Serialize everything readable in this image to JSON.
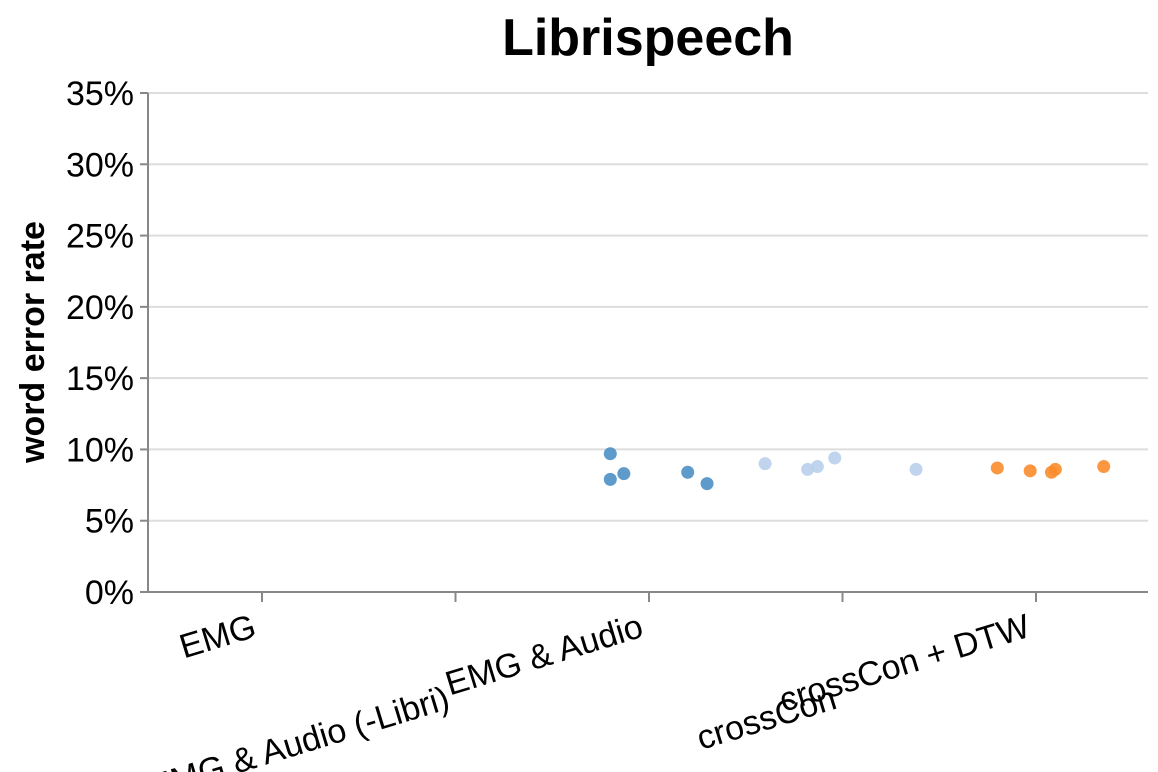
{
  "chart_data": {
    "type": "scatter",
    "title": "Librispeech",
    "ylabel": "word error rate",
    "xlabel": "",
    "categories": [
      "EMG",
      "EMG & Audio (-Libri)",
      "EMG & Audio",
      "crossCon",
      "crossCon + DTW"
    ],
    "ylim": [
      0,
      0.35
    ],
    "yticks": [
      0,
      0.05,
      0.1,
      0.15,
      0.2,
      0.25,
      0.3,
      0.35
    ],
    "ytick_labels": [
      "0%",
      "5%",
      "10%",
      "15%",
      "20%",
      "25%",
      "30%",
      "35%"
    ],
    "grid": true,
    "series": [
      {
        "category": "EMG & Audio",
        "color": "#4c8fc4",
        "points": [
          {
            "jitter": -0.2,
            "y": 0.097
          },
          {
            "jitter": -0.2,
            "y": 0.079
          },
          {
            "jitter": -0.13,
            "y": 0.083
          },
          {
            "jitter": 0.2,
            "y": 0.084
          },
          {
            "jitter": 0.3,
            "y": 0.076
          }
        ]
      },
      {
        "category": "crossCon",
        "color": "#b9cfec",
        "points": [
          {
            "jitter": -0.4,
            "y": 0.09
          },
          {
            "jitter": -0.18,
            "y": 0.086
          },
          {
            "jitter": -0.13,
            "y": 0.088
          },
          {
            "jitter": -0.04,
            "y": 0.094
          },
          {
            "jitter": 0.38,
            "y": 0.086
          }
        ]
      },
      {
        "category": "crossCon + DTW",
        "color": "#fc8c2c",
        "points": [
          {
            "jitter": -0.2,
            "y": 0.087
          },
          {
            "jitter": -0.03,
            "y": 0.085
          },
          {
            "jitter": 0.08,
            "y": 0.084
          },
          {
            "jitter": 0.1,
            "y": 0.086
          },
          {
            "jitter": 0.35,
            "y": 0.088
          }
        ]
      }
    ]
  }
}
